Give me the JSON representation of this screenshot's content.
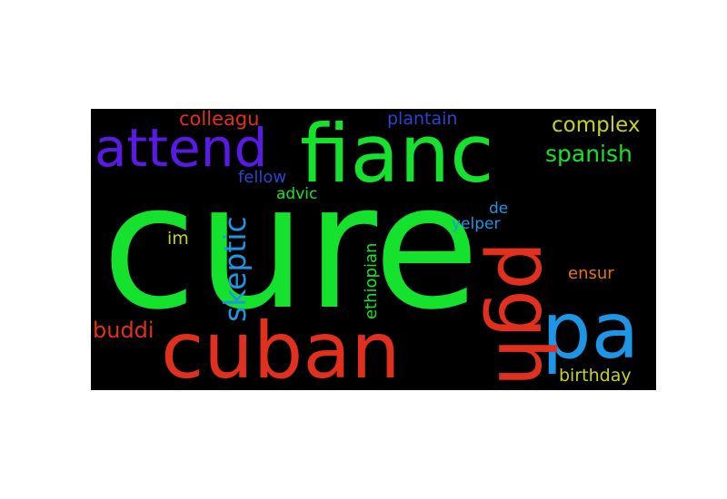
{
  "wordcloud": {
    "words": [
      {
        "text": "cure",
        "color": "#14e22d"
      },
      {
        "text": "fianc",
        "color": "#14e22d"
      },
      {
        "text": "attend",
        "color": "#5a1ae6"
      },
      {
        "text": "cuban",
        "color": "#e2301e"
      },
      {
        "text": "pa",
        "color": "#1e96e6"
      },
      {
        "text": "pgh",
        "color": "#e2301e"
      },
      {
        "text": "skeptic",
        "color": "#1e96e6"
      },
      {
        "text": "complex",
        "color": "#c8d21e"
      },
      {
        "text": "spanish",
        "color": "#14e22d"
      },
      {
        "text": "colleagu",
        "color": "#e2301e"
      },
      {
        "text": "plantain",
        "color": "#2846d2"
      },
      {
        "text": "fellow",
        "color": "#2846d2"
      },
      {
        "text": "advic",
        "color": "#14e22d"
      },
      {
        "text": "im",
        "color": "#c8d21e"
      },
      {
        "text": "buddi",
        "color": "#e2301e"
      },
      {
        "text": "ethiopian",
        "color": "#14e22d"
      },
      {
        "text": "de",
        "color": "#1e96e6"
      },
      {
        "text": "yelper",
        "color": "#1e96e6"
      },
      {
        "text": "ensur",
        "color": "#e67314"
      },
      {
        "text": "birthday",
        "color": "#c8d21e"
      }
    ]
  }
}
